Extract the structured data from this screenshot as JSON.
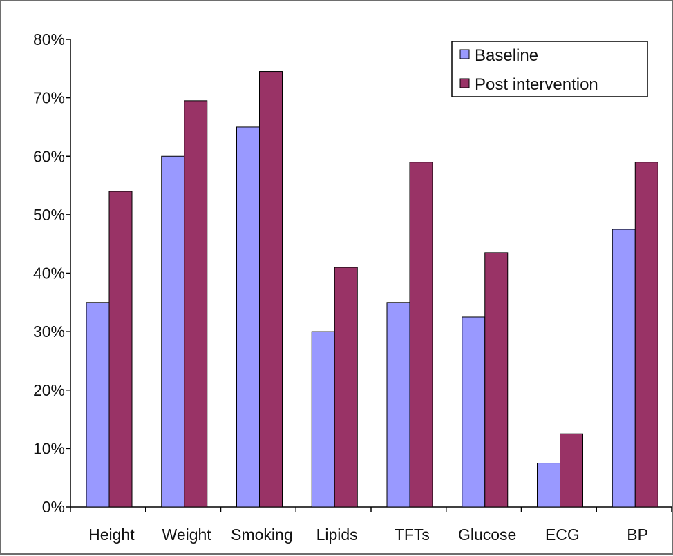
{
  "chart_data": {
    "type": "bar",
    "categories": [
      "Height",
      "Weight",
      "Smoking",
      "Lipids",
      "TFTs",
      "Glucose",
      "ECG",
      "BP"
    ],
    "series": [
      {
        "name": "Baseline",
        "color": "#9999ff",
        "values": [
          35,
          60,
          65,
          30,
          35,
          32.5,
          7.5,
          47.5
        ]
      },
      {
        "name": "Post intervention",
        "color": "#993366",
        "values": [
          54,
          69.5,
          74.5,
          41,
          59,
          43.5,
          12.5,
          59
        ]
      }
    ],
    "y_ticks": [
      "0%",
      "10%",
      "20%",
      "30%",
      "40%",
      "50%",
      "60%",
      "70%",
      "80%"
    ],
    "ylim": [
      0,
      80
    ],
    "y_unit": "%",
    "grid": false,
    "legend_position": "top-right",
    "title": "",
    "xlabel": "",
    "ylabel": ""
  }
}
